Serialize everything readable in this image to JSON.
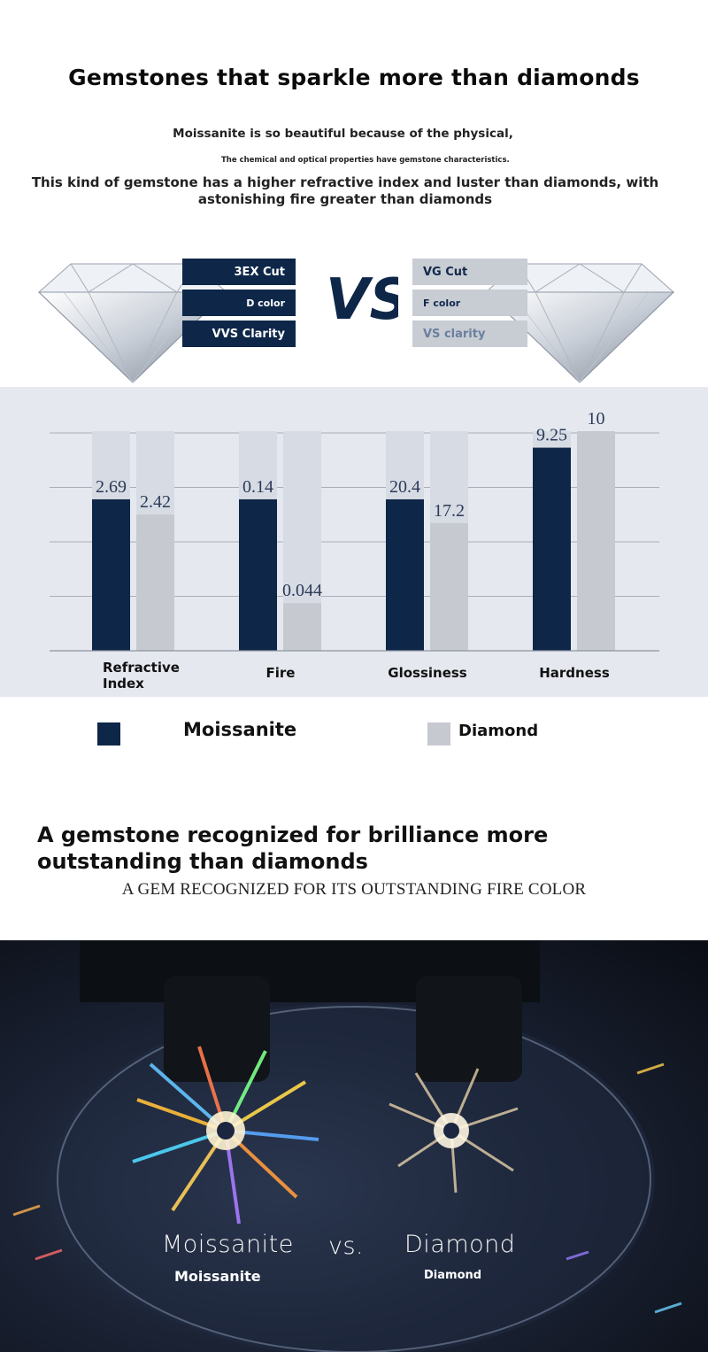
{
  "header": {
    "title": "Gemstones that sparkle more than diamonds",
    "intro_line1": "Moissanite is so beautiful because of the physical,",
    "intro_line2": "The chemical and optical properties have gemstone characteristics.",
    "intro_line3": "This kind of gemstone has a higher refractive index and luster than diamonds, with astonishing fire greater than diamonds"
  },
  "comparison": {
    "left_tags": [
      "3EX Cut",
      "D color",
      "VVS Clarity"
    ],
    "vs_label": "VS",
    "right_tags": [
      "VG Cut",
      "F color",
      "VS clarity"
    ]
  },
  "colors": {
    "moissanite": "#0e2749",
    "diamond": "#c6c9d0",
    "track": "#d7dbe4",
    "panel": "#e5e8ef"
  },
  "chart_data": {
    "type": "bar",
    "categories": [
      "Refractive Index",
      "Fire",
      "Glossiness",
      "Hardness"
    ],
    "series": [
      {
        "name": "Moissanite",
        "values": [
          2.69,
          0.14,
          20.4,
          9.25
        ],
        "labels": [
          "2.69",
          "0.14",
          "20.4",
          "9.25"
        ]
      },
      {
        "name": "Diamond",
        "values": [
          2.42,
          0.044,
          17.2,
          10
        ],
        "labels": [
          "2.42",
          "0.044",
          "17.2",
          "10"
        ]
      }
    ],
    "grid": true,
    "legend_position": "bottom"
  },
  "legend": {
    "moissanite": "Moissanite",
    "diamond": "Diamond"
  },
  "section2": {
    "heading": "A gemstone recognized for brilliance more outstanding than diamonds",
    "subheading": "A GEM RECOGNIZED FOR ITS OUTSTANDING FIRE COLOR"
  },
  "photo": {
    "left_big": "Moissanite",
    "vs": "vs.",
    "right_big": "Diamond",
    "left_small": "Moissanite",
    "right_small": "Diamond"
  }
}
